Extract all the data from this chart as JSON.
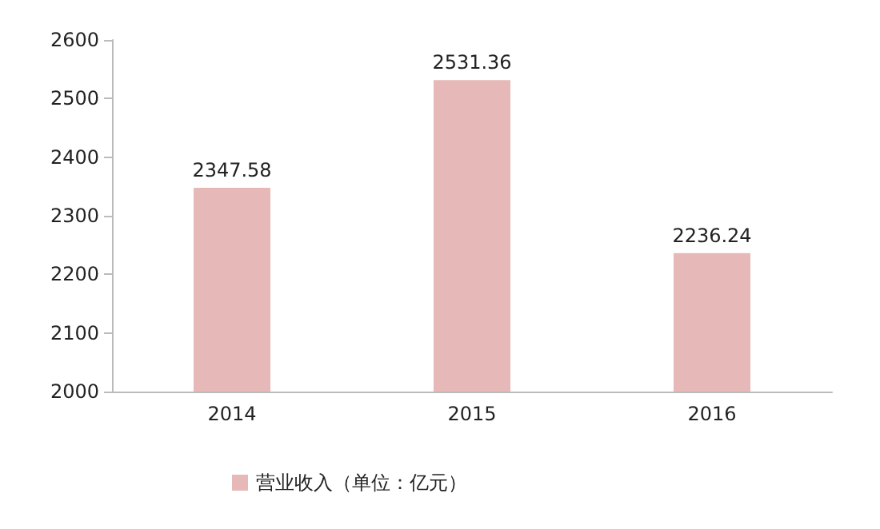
{
  "chart_data": {
    "type": "bar",
    "categories": [
      "2014",
      "2015",
      "2016"
    ],
    "series": [
      {
        "name": "营业收入（单位：亿元）",
        "color": "#e6b8b7",
        "values": [
          2347.58,
          2531.36,
          2236.24
        ]
      }
    ],
    "ylim": [
      2000,
      2600
    ],
    "yticks": [
      2000,
      2100,
      2200,
      2300,
      2400,
      2500,
      2600
    ],
    "grid": false,
    "legend": "bottom",
    "data_labels": true
  }
}
